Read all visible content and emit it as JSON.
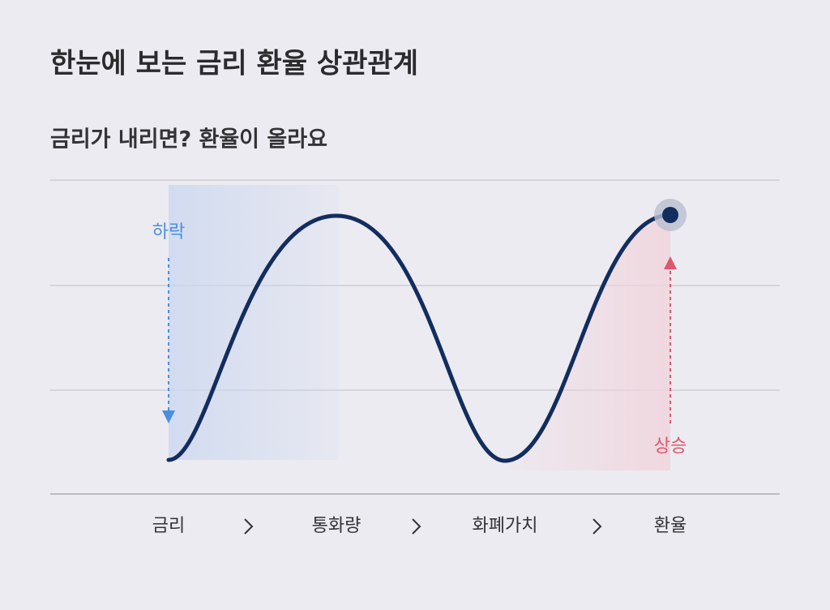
{
  "header": {
    "title": "한눈에 보는 금리 환율 상관관계",
    "subtitle": "금리가 내리면? 환율이 올라요"
  },
  "annotations": {
    "down": "하락",
    "up": "상승"
  },
  "steps": [
    "금리",
    "통화량",
    "화폐가치",
    "환율"
  ]
}
